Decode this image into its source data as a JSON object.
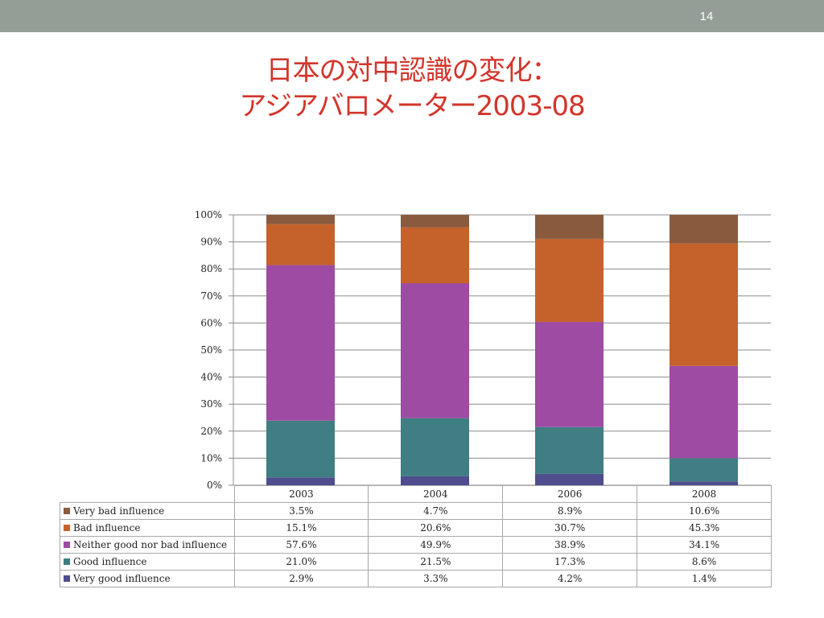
{
  "slide": {
    "page_number": "14",
    "title_line1": "日本の対中認識の変化：",
    "title_line2": "アジアバロメーター2003-08"
  },
  "colors": {
    "topbar": "#949e97",
    "title": "#d2352b"
  },
  "chart_data": {
    "type": "bar",
    "stacked": true,
    "percent_stacked": true,
    "categories": [
      "2003",
      "2004",
      "2006",
      "2008"
    ],
    "y_ticks": [
      "0%",
      "10%",
      "20%",
      "30%",
      "40%",
      "50%",
      "60%",
      "70%",
      "80%",
      "90%",
      "100%"
    ],
    "ylim": [
      0,
      100
    ],
    "grid": true,
    "legend": "table-below",
    "series": [
      {
        "name": "Very good influence",
        "values": [
          2.9,
          3.3,
          4.2,
          1.4
        ],
        "labels": [
          "2.9%",
          "3.3%",
          "4.2%",
          "1.4%"
        ],
        "color": "#4f4d8e"
      },
      {
        "name": "Good influence",
        "values": [
          21.0,
          21.5,
          17.3,
          8.6
        ],
        "labels": [
          "21.0%",
          "21.5%",
          "17.3%",
          "8.6%"
        ],
        "color": "#3f7e83"
      },
      {
        "name": "Neither good nor bad influence",
        "values": [
          57.6,
          49.9,
          38.9,
          34.1
        ],
        "labels": [
          "57.6%",
          "49.9%",
          "38.9%",
          "34.1%"
        ],
        "color": "#9d4ba3"
      },
      {
        "name": "Bad influence",
        "values": [
          15.1,
          20.6,
          30.7,
          45.3
        ],
        "labels": [
          "15.1%",
          "20.6%",
          "30.7%",
          "45.3%"
        ],
        "color": "#c5622c"
      },
      {
        "name": "Very bad influence",
        "values": [
          3.5,
          4.7,
          8.9,
          10.6
        ],
        "labels": [
          "3.5%",
          "4.7%",
          "8.9%",
          "10.6%"
        ],
        "color": "#8a5a3e"
      }
    ]
  }
}
